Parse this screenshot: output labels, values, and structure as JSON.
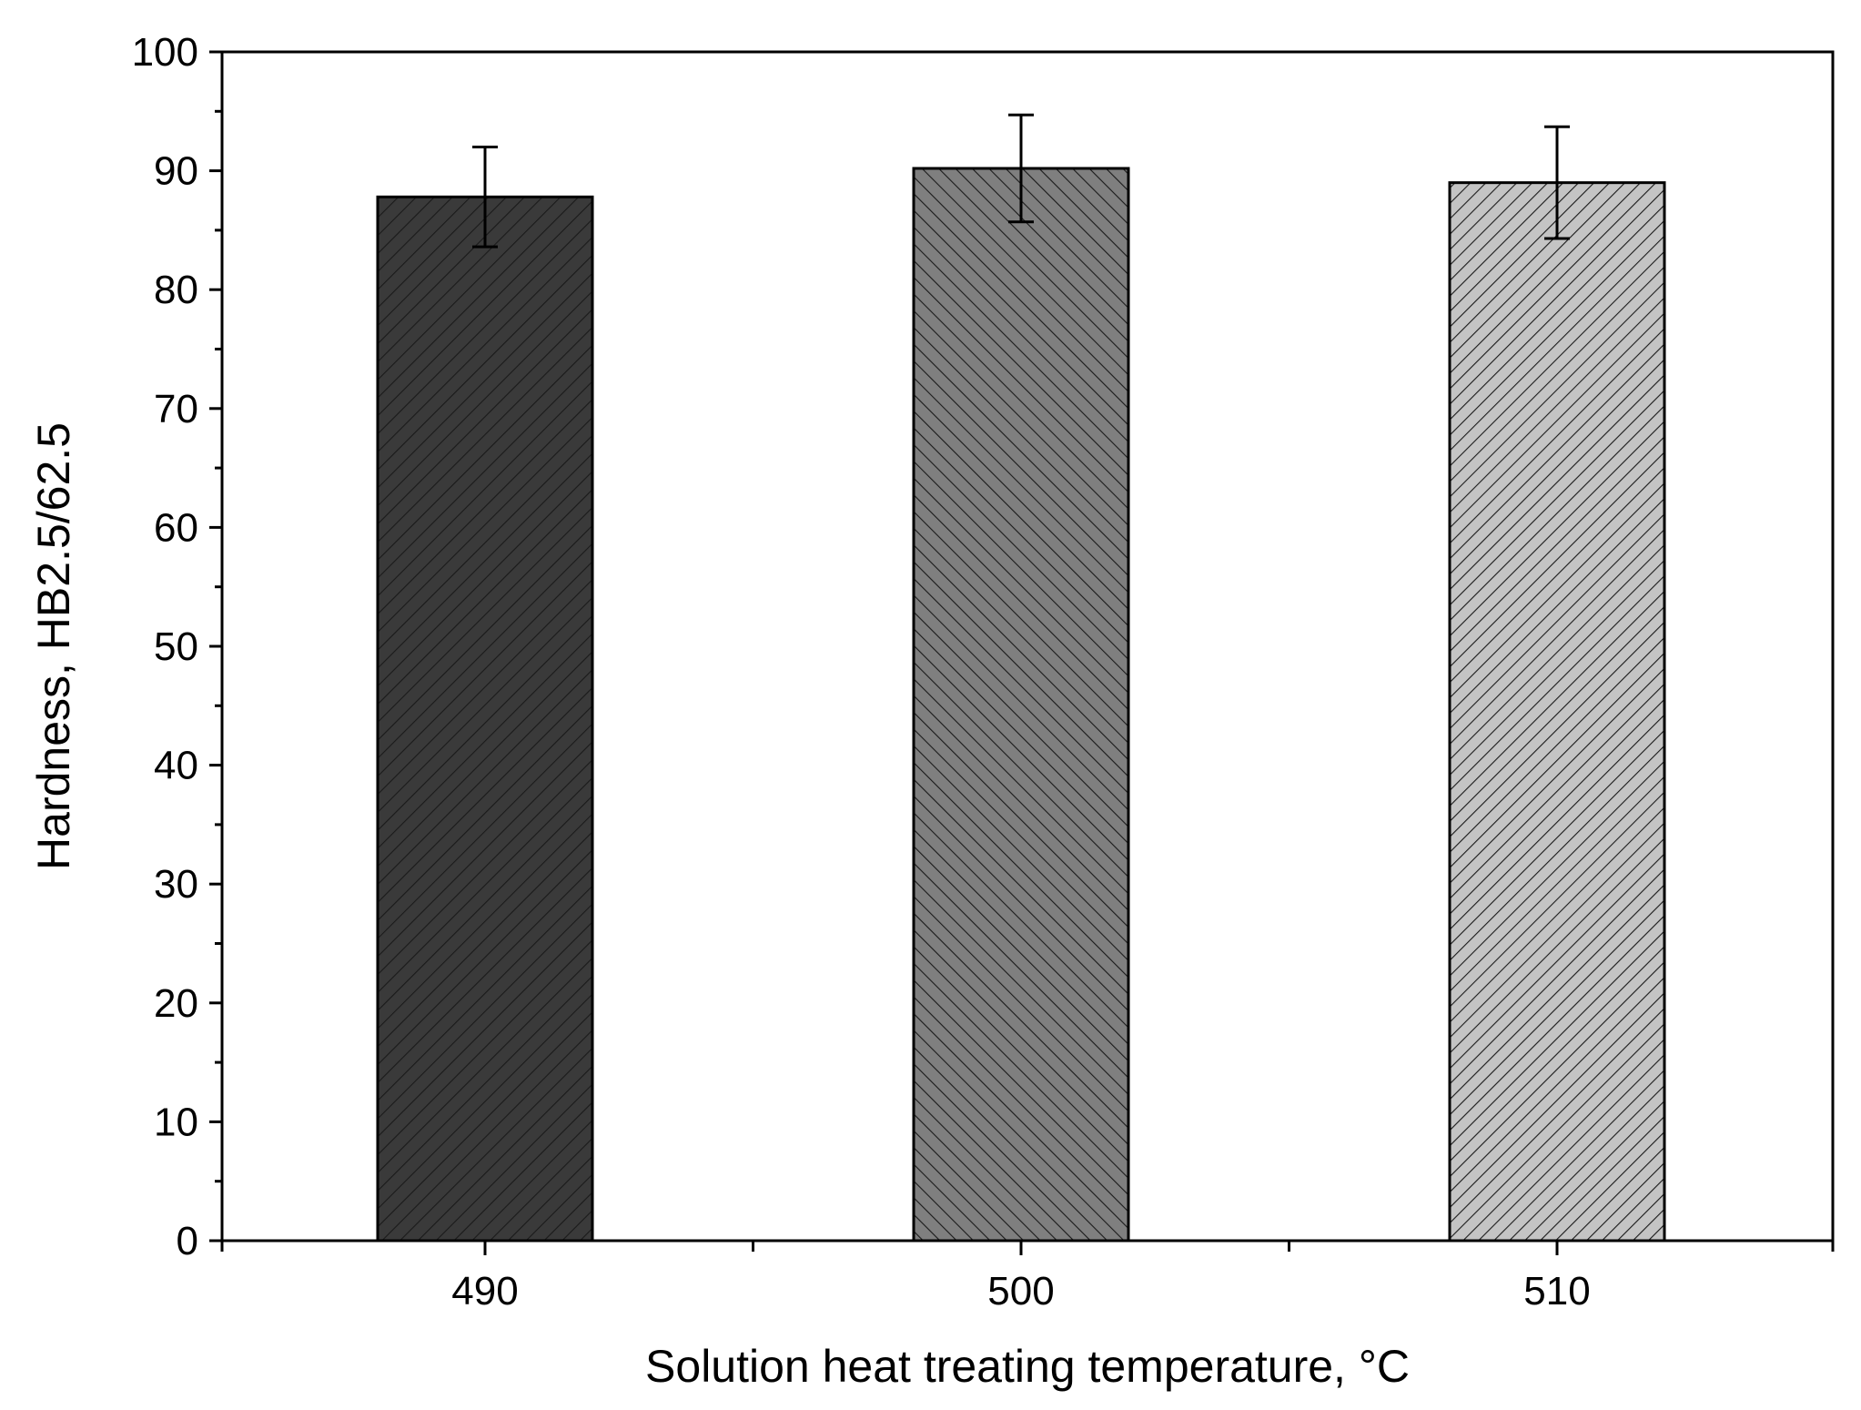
{
  "chart_data": {
    "type": "bar",
    "title": "",
    "xlabel": "Solution heat treating temperature, °C",
    "ylabel": "Hardness, HB2.5/62.5",
    "categories": [
      "490",
      "500",
      "510"
    ],
    "values": [
      87.8,
      90.2,
      89.0
    ],
    "error": [
      4.2,
      4.5,
      4.7
    ],
    "ylim": [
      0,
      100
    ],
    "yticks": [
      "0",
      "10",
      "20",
      "30",
      "40",
      "50",
      "60",
      "70",
      "80",
      "90",
      "100"
    ],
    "grid": false,
    "legend": "none",
    "bar_fills": [
      "#3a3a3a",
      "#7f7f7f",
      "#c4c4c4"
    ],
    "hatch_color": "#1a1a1a",
    "axis_color": "#000000"
  }
}
